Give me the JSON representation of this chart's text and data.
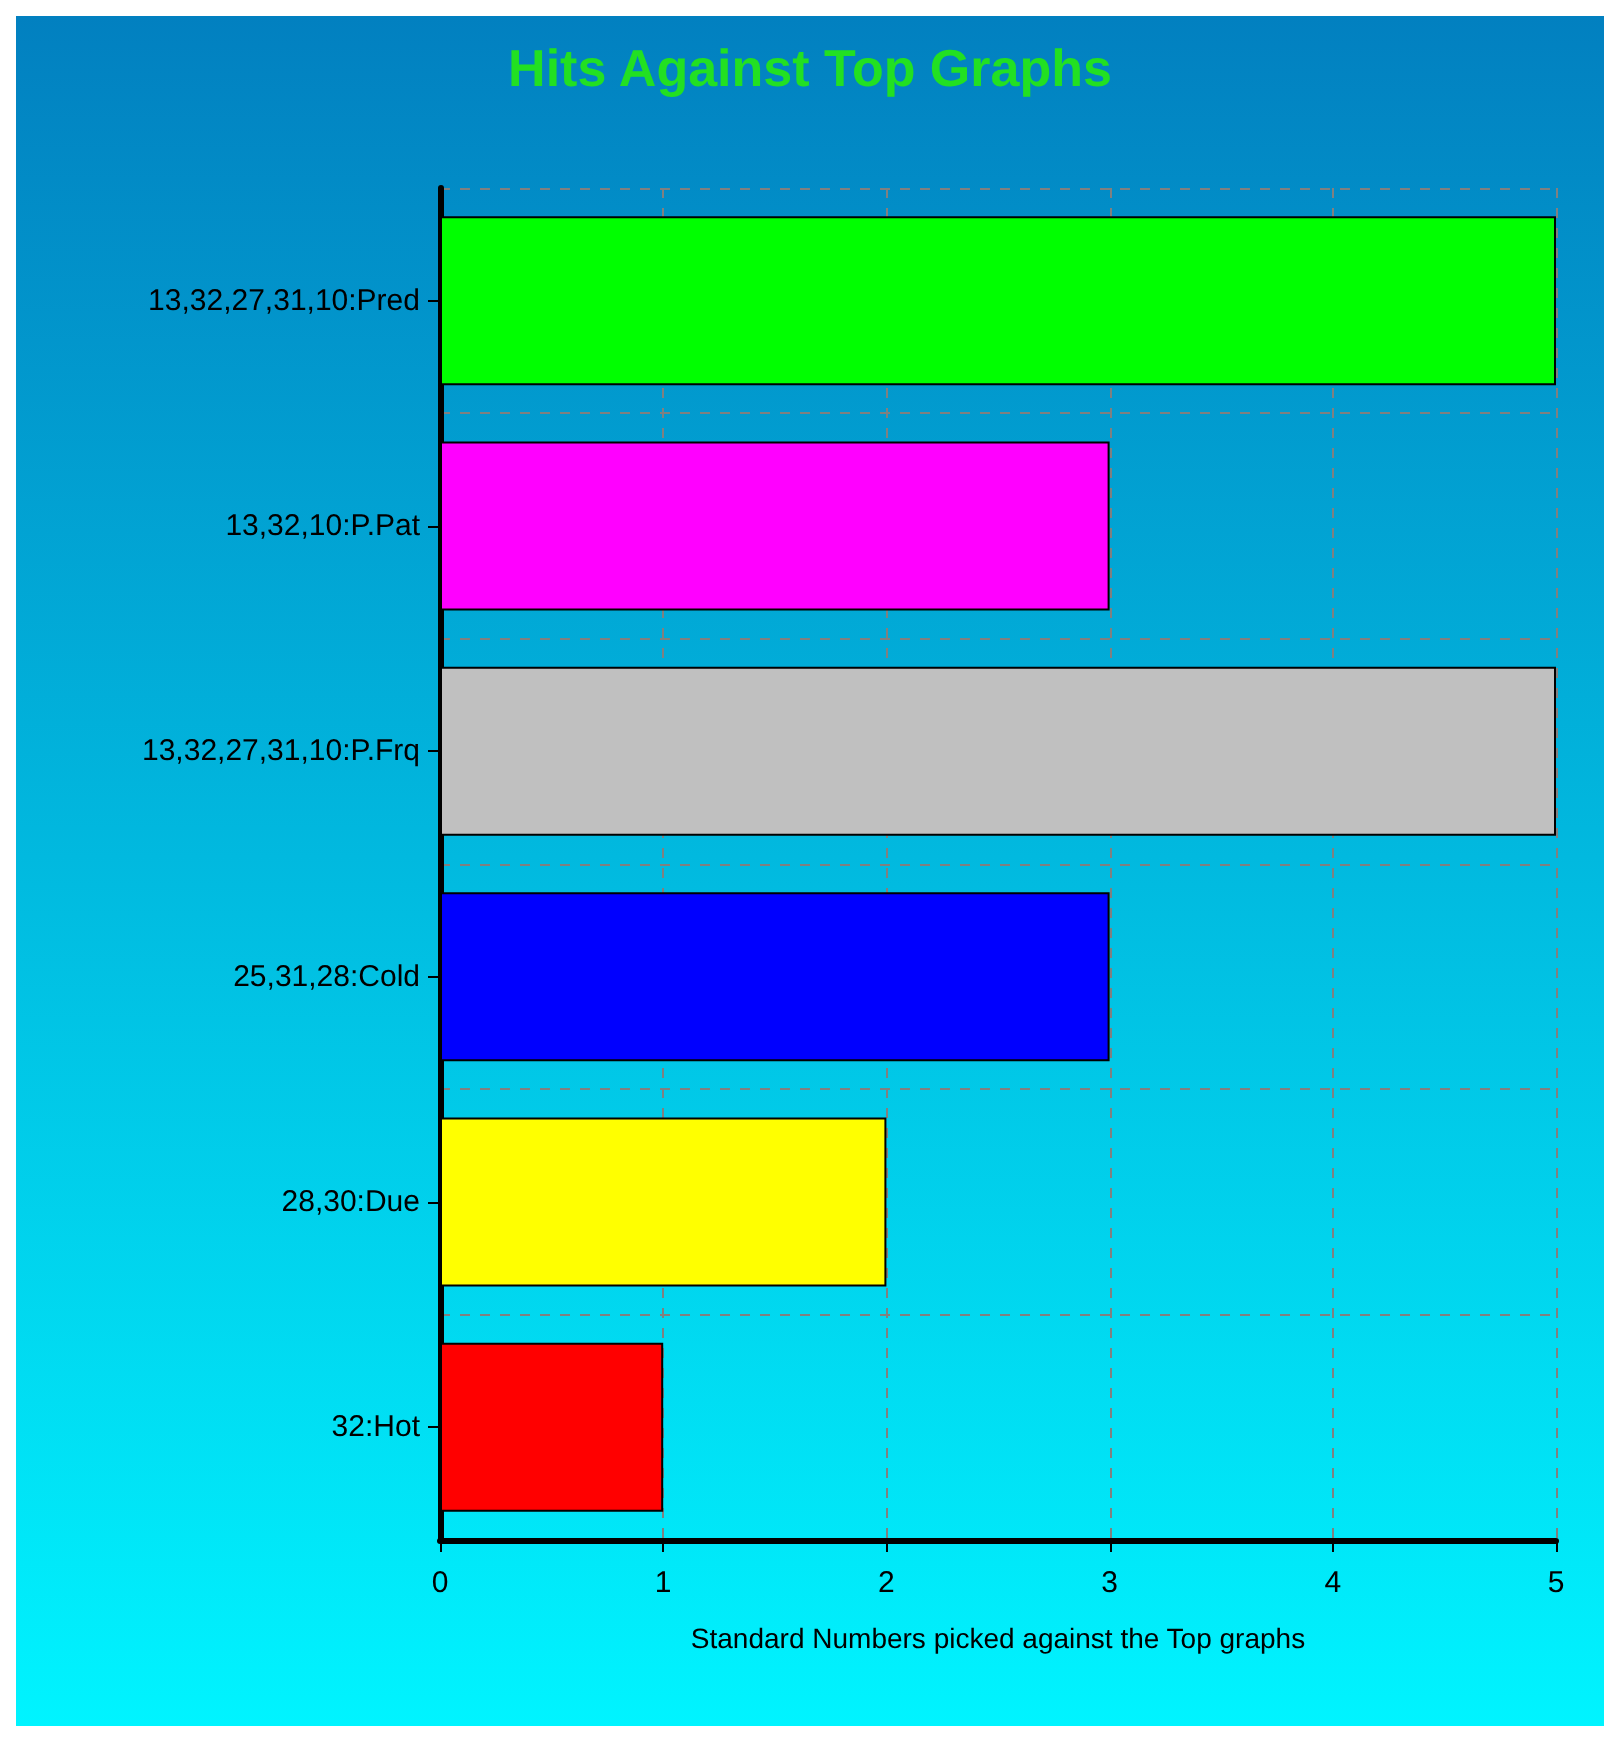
{
  "chart_data": {
    "type": "bar",
    "orientation": "horizontal",
    "title": "Hits Against Top Graphs",
    "xlabel": "Standard Numbers picked against the Top graphs",
    "categories": [
      "13,32,27,31,10:Pred",
      "13,32,10:P.Pat",
      "13,32,27,31,10:P.Frq",
      "25,31,28:Cold",
      "28,30:Due",
      "32:Hot"
    ],
    "values": [
      5,
      3,
      5,
      3,
      2,
      1
    ],
    "colors": [
      "#00ff00",
      "#ff00ff",
      "#c0c0c0",
      "#0000ff",
      "#ffff00",
      "#ff0000"
    ],
    "xlim": [
      0,
      5
    ],
    "xticks": [
      0,
      1,
      2,
      3,
      4,
      5
    ],
    "grid": true
  }
}
